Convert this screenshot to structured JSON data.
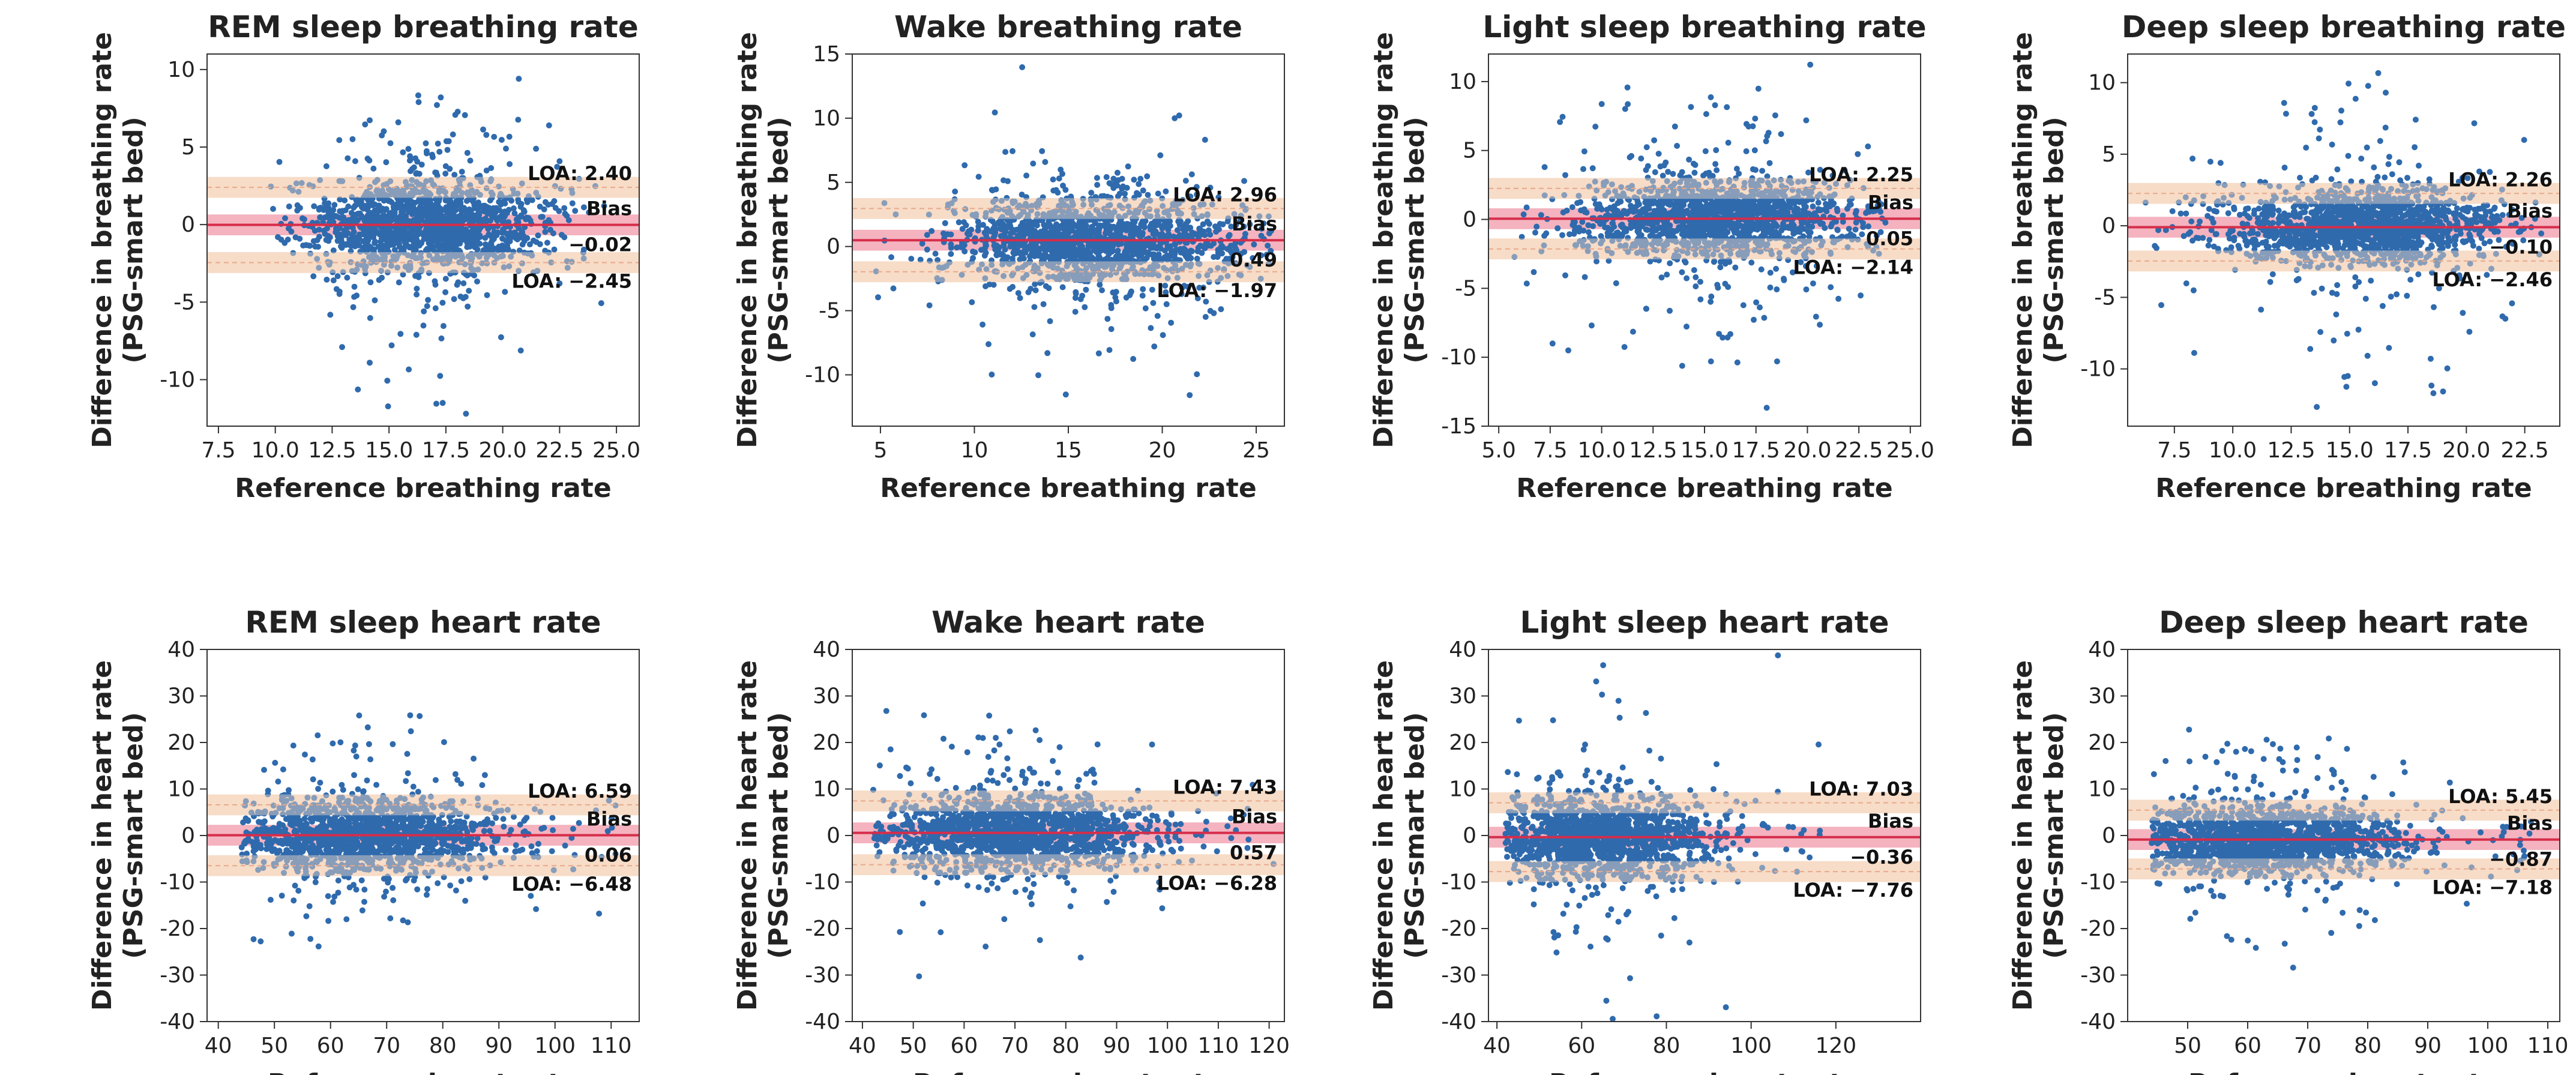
{
  "colors": {
    "point": "#2f6aad",
    "bias_line": "#d62d4a",
    "bias_band": "#f4b3bf",
    "loa_band": "#f7dcc7",
    "loa_line": "#e8a98c"
  },
  "chart_data": [
    {
      "type": "scatter",
      "title": "REM sleep breathing rate",
      "xlabel": "Reference breathing rate",
      "ylabel": [
        "Difference in breathing rate",
        "(PSG-smart bed)"
      ],
      "xlim": [
        7,
        26
      ],
      "ylim": [
        -13,
        11
      ],
      "xticks": [
        "7.5",
        "10.0",
        "12.5",
        "15.0",
        "17.5",
        "20.0",
        "22.5",
        "25.0"
      ],
      "yticks": [
        "10",
        "5",
        "0",
        "-5",
        "-10"
      ],
      "loa_upper": 2.4,
      "bias": -0.02,
      "loa_lower": -2.45,
      "loa_upper_label": "LOA: 2.40",
      "bias_label": "Bias",
      "bias_value_label": "−0.02",
      "loa_lower_label": "LOA: −2.45",
      "cloud": {
        "x_range": [
          9.8,
          24.5
        ],
        "x_center": 16.5,
        "spread": 1.5,
        "outlier_spread": 4.5
      }
    },
    {
      "type": "scatter",
      "title": "Wake breathing rate",
      "xlabel": "Reference breathing rate",
      "ylabel": [
        "Difference in breathing rate",
        "(PSG-smart bed)"
      ],
      "xlim": [
        3.5,
        26.5
      ],
      "ylim": [
        -14,
        15
      ],
      "xticks": [
        "5",
        "10",
        "15",
        "20",
        "25"
      ],
      "yticks": [
        "15",
        "10",
        "5",
        "0",
        "-5",
        "-10"
      ],
      "loa_upper": 2.96,
      "bias": 0.49,
      "loa_lower": -1.97,
      "loa_upper_label": "LOA: 2.96",
      "bias_label": "Bias",
      "bias_value_label": "0.49",
      "loa_lower_label": "LOA: −1.97",
      "cloud": {
        "x_range": [
          4,
          26
        ],
        "x_center": 16.5,
        "spread": 1.7,
        "outlier_spread": 5.0
      }
    },
    {
      "type": "scatter",
      "title": "Light sleep breathing rate",
      "xlabel": "Reference breathing rate",
      "ylabel": [
        "Difference in breathing rate",
        "(PSG-smart bed)"
      ],
      "xlim": [
        4.5,
        25.5
      ],
      "ylim": [
        -15,
        12
      ],
      "xticks": [
        "5.0",
        "7.5",
        "10.0",
        "12.5",
        "15.0",
        "17.5",
        "20.0",
        "22.5",
        "25.0"
      ],
      "yticks": [
        "10",
        "5",
        "0",
        "-5",
        "-10",
        "-15"
      ],
      "loa_upper": 2.25,
      "bias": 0.05,
      "loa_lower": -2.14,
      "loa_upper_label": "LOA: 2.25",
      "bias_label": "Bias",
      "bias_value_label": "0.05",
      "loa_lower_label": "LOA: −2.14",
      "cloud": {
        "x_range": [
          4.8,
          24
        ],
        "x_center": 15.5,
        "spread": 1.5,
        "outlier_spread": 5.0
      }
    },
    {
      "type": "scatter",
      "title": "Deep sleep breathing rate",
      "xlabel": "Reference breathing rate",
      "ylabel": [
        "Difference in breathing rate",
        "(PSG-smart bed)"
      ],
      "xlim": [
        5.5,
        24
      ],
      "ylim": [
        -14,
        12
      ],
      "xticks": [
        "7.5",
        "10.0",
        "12.5",
        "15.0",
        "17.5",
        "20.0",
        "22.5"
      ],
      "yticks": [
        "10",
        "5",
        "0",
        "-5",
        "-10"
      ],
      "loa_upper": 2.26,
      "bias": -0.1,
      "loa_lower": -2.46,
      "loa_upper_label": "LOA: 2.26",
      "bias_label": "Bias",
      "bias_value_label": "−0.10",
      "loa_lower_label": "LOA: −2.46",
      "cloud": {
        "x_range": [
          6,
          23.5
        ],
        "x_center": 15.5,
        "spread": 1.3,
        "outlier_spread": 5.0
      }
    },
    {
      "type": "scatter",
      "title": "REM sleep heart rate",
      "xlabel": "Reference heart rate",
      "ylabel": [
        "Difference in heart rate",
        "(PSG-smart bed)"
      ],
      "xlim": [
        38,
        115
      ],
      "ylim": [
        -40,
        40
      ],
      "xticks": [
        "40",
        "50",
        "60",
        "70",
        "80",
        "90",
        "100",
        "110"
      ],
      "yticks": [
        "40",
        "30",
        "20",
        "10",
        "0",
        "-10",
        "-20",
        "-30",
        "-40"
      ],
      "loa_upper": 6.59,
      "bias": 0.06,
      "loa_lower": -6.48,
      "loa_upper_label": "LOA: 6.59",
      "bias_label": "Bias",
      "bias_value_label": "0.06",
      "loa_lower_label": "LOA: −6.48",
      "cloud": {
        "x_range": [
          44,
          112
        ],
        "x_center": 65,
        "spread": 4,
        "outlier_spread": 11
      }
    },
    {
      "type": "scatter",
      "title": "Wake heart rate",
      "xlabel": "Reference heart rate",
      "ylabel": [
        "Difference in heart rate",
        "(PSG-smart bed)"
      ],
      "xlim": [
        38,
        123
      ],
      "ylim": [
        -40,
        40
      ],
      "xticks": [
        "40",
        "50",
        "60",
        "70",
        "80",
        "90",
        "100",
        "110",
        "120"
      ],
      "yticks": [
        "40",
        "30",
        "20",
        "10",
        "0",
        "-10",
        "-20",
        "-30",
        "-40"
      ],
      "loa_upper": 7.43,
      "bias": 0.57,
      "loa_lower": -6.28,
      "loa_upper_label": "LOA: 7.43",
      "bias_label": "Bias",
      "bias_value_label": "0.57",
      "loa_lower_label": "LOA: −6.28",
      "cloud": {
        "x_range": [
          42,
          121
        ],
        "x_center": 70,
        "spread": 4,
        "outlier_spread": 12
      }
    },
    {
      "type": "scatter",
      "title": "Light sleep heart rate",
      "xlabel": "Reference heart rate",
      "ylabel": [
        "Difference in heart rate",
        "(PSG-smart bed)"
      ],
      "xlim": [
        38,
        140
      ],
      "ylim": [
        -40,
        40
      ],
      "xticks": [
        "40",
        "60",
        "80",
        "100",
        "120"
      ],
      "yticks": [
        "40",
        "30",
        "20",
        "10",
        "0",
        "-10",
        "-20",
        "-30",
        "-40"
      ],
      "loa_upper": 7.03,
      "bias": -0.36,
      "loa_lower": -7.76,
      "loa_upper_label": "LOA: 7.03",
      "bias_label": "Bias",
      "bias_value_label": "−0.36",
      "loa_lower_label": "LOA: −7.76",
      "cloud": {
        "x_range": [
          42,
          118
        ],
        "x_center": 64,
        "spread": 4.5,
        "outlier_spread": 13
      }
    },
    {
      "type": "scatter",
      "title": "Deep sleep heart rate",
      "xlabel": "Reference heart rate",
      "ylabel": [
        "Difference in heart rate",
        "(PSG-smart bed)"
      ],
      "xlim": [
        40,
        112
      ],
      "ylim": [
        -40,
        40
      ],
      "xticks": [
        "50",
        "60",
        "70",
        "80",
        "90",
        "100",
        "110"
      ],
      "yticks": [
        "40",
        "30",
        "20",
        "10",
        "0",
        "-10",
        "-20",
        "-30",
        "-40"
      ],
      "loa_upper": 5.45,
      "bias": -0.87,
      "loa_lower": -7.18,
      "loa_upper_label": "LOA: 5.45",
      "bias_label": "Bias",
      "bias_value_label": "−0.87",
      "loa_lower_label": "LOA: −7.18",
      "cloud": {
        "x_range": [
          44,
          108
        ],
        "x_center": 62,
        "spread": 3.5,
        "outlier_spread": 11
      }
    }
  ]
}
